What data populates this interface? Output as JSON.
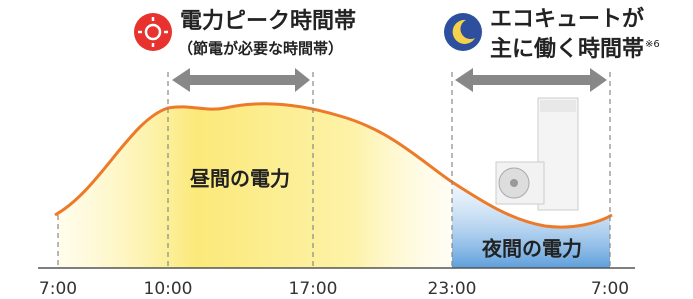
{
  "peak": {
    "title": "電力ピーク時間帯",
    "subtitle": "（節電が必要な時間帯）"
  },
  "ecocute": {
    "title_line1": "エコキュートが",
    "title_line2": "主に働く時間帯",
    "note": "※6"
  },
  "areas": {
    "day": "昼間の電力",
    "night": "夜間の電力"
  },
  "times": [
    "7:00",
    "10:00",
    "17:00",
    "23:00",
    "7:00"
  ]
}
